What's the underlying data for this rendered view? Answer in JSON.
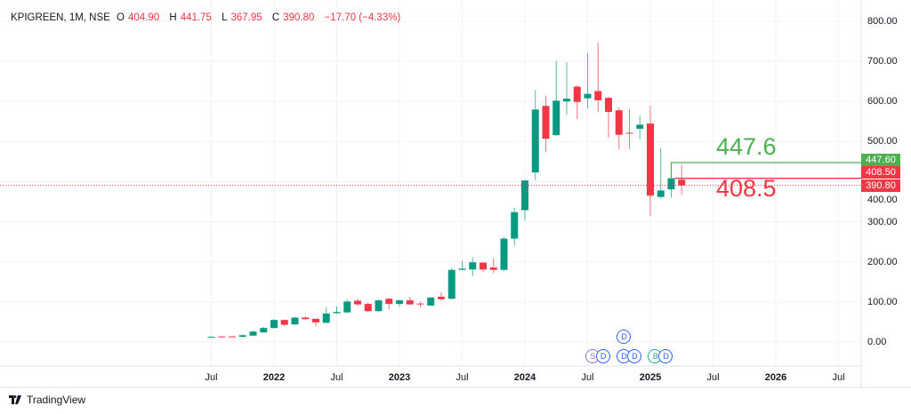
{
  "legend": {
    "symbol": "KPIGREEN, 1M, NSE",
    "o_label": "O",
    "o": "404.90",
    "h_label": "H",
    "h": "441.75",
    "l_label": "L",
    "l": "367.95",
    "c_label": "C",
    "c": "390.80",
    "change": "−17.70 (−4.33%)"
  },
  "colors": {
    "up": "#089981",
    "down": "#f23645",
    "green_line": "#4caf50",
    "red_line": "#f23645",
    "grid": "#f0f3fa"
  },
  "chart_data": {
    "type": "candlestick",
    "interval": "1M",
    "ylim": [
      -60,
      820
    ],
    "y_ticks": [
      "800.00",
      "700.00",
      "600.00",
      "500.00",
      "400.00",
      "300.00",
      "200.00",
      "100.00",
      "0.00"
    ],
    "y_tick_values": [
      800,
      700,
      600,
      500,
      400,
      300,
      200,
      100,
      0
    ],
    "x_ticks": [
      {
        "label": "Jul",
        "m": -6,
        "year": false
      },
      {
        "label": "2022",
        "m": 0,
        "year": true
      },
      {
        "label": "Jul",
        "m": 6,
        "year": false
      },
      {
        "label": "2023",
        "m": 12,
        "year": true
      },
      {
        "label": "Jul",
        "m": 18,
        "year": false
      },
      {
        "label": "2024",
        "m": 24,
        "year": true
      },
      {
        "label": "Jul",
        "m": 30,
        "year": false
      },
      {
        "label": "2025",
        "m": 36,
        "year": true
      },
      {
        "label": "Jul",
        "m": 42,
        "year": false
      },
      {
        "label": "2026",
        "m": 48,
        "year": true
      },
      {
        "label": "Jul",
        "m": 54,
        "year": false
      }
    ],
    "candles_start": "2021-07",
    "ohlc": [
      [
        12,
        14,
        12,
        13
      ],
      [
        14,
        15,
        12,
        13
      ],
      [
        14,
        15,
        12,
        13
      ],
      [
        13,
        19,
        12,
        17
      ],
      [
        16,
        28,
        15,
        26
      ],
      [
        24,
        38,
        23,
        35
      ],
      [
        35,
        57,
        34,
        55
      ],
      [
        55,
        56,
        40,
        43
      ],
      [
        44,
        63,
        43,
        61
      ],
      [
        61,
        64,
        56,
        57
      ],
      [
        58,
        58,
        41,
        49
      ],
      [
        48,
        86,
        47,
        71
      ],
      [
        72,
        89,
        71,
        75
      ],
      [
        74,
        106,
        72,
        101
      ],
      [
        103,
        108,
        90,
        94
      ],
      [
        95,
        98,
        75,
        77
      ],
      [
        77,
        106,
        76,
        104
      ],
      [
        108,
        110,
        81,
        95
      ],
      [
        95,
        106,
        88,
        104
      ],
      [
        104,
        113,
        93,
        94
      ],
      [
        96,
        100,
        86,
        94
      ],
      [
        91,
        112,
        90,
        111
      ],
      [
        113,
        124,
        103,
        107
      ],
      [
        108,
        185,
        106,
        180
      ],
      [
        180,
        202,
        180,
        183
      ],
      [
        181,
        212,
        165,
        199
      ],
      [
        198,
        200,
        175,
        181
      ],
      [
        186,
        209,
        172,
        180
      ],
      [
        180,
        262,
        178,
        258
      ],
      [
        258,
        335,
        240,
        324
      ],
      [
        329,
        405,
        303,
        403
      ],
      [
        423,
        629,
        404,
        580
      ],
      [
        589,
        615,
        475,
        507
      ],
      [
        516,
        702,
        514,
        602
      ],
      [
        600,
        698,
        567,
        607
      ],
      [
        637,
        640,
        556,
        599
      ],
      [
        608,
        720,
        583,
        619
      ],
      [
        626,
        747,
        574,
        603
      ],
      [
        609,
        612,
        510,
        574
      ],
      [
        578,
        585,
        482,
        517
      ],
      [
        522,
        581,
        482,
        520
      ],
      [
        532,
        565,
        506,
        542
      ],
      [
        545,
        589,
        314,
        365
      ],
      [
        362,
        484,
        358,
        378
      ],
      [
        381,
        447.6,
        360,
        408.5
      ],
      [
        404.9,
        441.75,
        367.95,
        390.8
      ]
    ],
    "last_close": 390.8
  },
  "annotations": {
    "high_line_value": 447.6,
    "high_text": "447.6",
    "close_line_value": 408.5,
    "close_text": "408.5"
  },
  "price_tags": {
    "high": "447.60",
    "close": "408.50",
    "last": "390.80"
  },
  "events": [
    {
      "label": "S",
      "kind": "split",
      "row": 0,
      "m": 30.5,
      "color": "#9c6ade"
    },
    {
      "label": "D",
      "kind": "dividend",
      "row": 0,
      "m": 31.5,
      "color": "#2962ff"
    },
    {
      "label": "D",
      "kind": "dividend",
      "row": 1,
      "m": 33.5,
      "color": "#2962ff"
    },
    {
      "label": "D",
      "kind": "dividend",
      "row": 0,
      "m": 33.5,
      "color": "#2962ff"
    },
    {
      "label": "D",
      "kind": "dividend",
      "row": 0,
      "m": 34.5,
      "color": "#2962ff"
    },
    {
      "label": "B",
      "kind": "bonus",
      "row": 0,
      "m": 36.5,
      "color": "#26a69a"
    },
    {
      "label": "D",
      "kind": "dividend",
      "row": 0,
      "m": 37.5,
      "color": "#2962ff"
    }
  ],
  "branding": {
    "name": "TradingView"
  }
}
